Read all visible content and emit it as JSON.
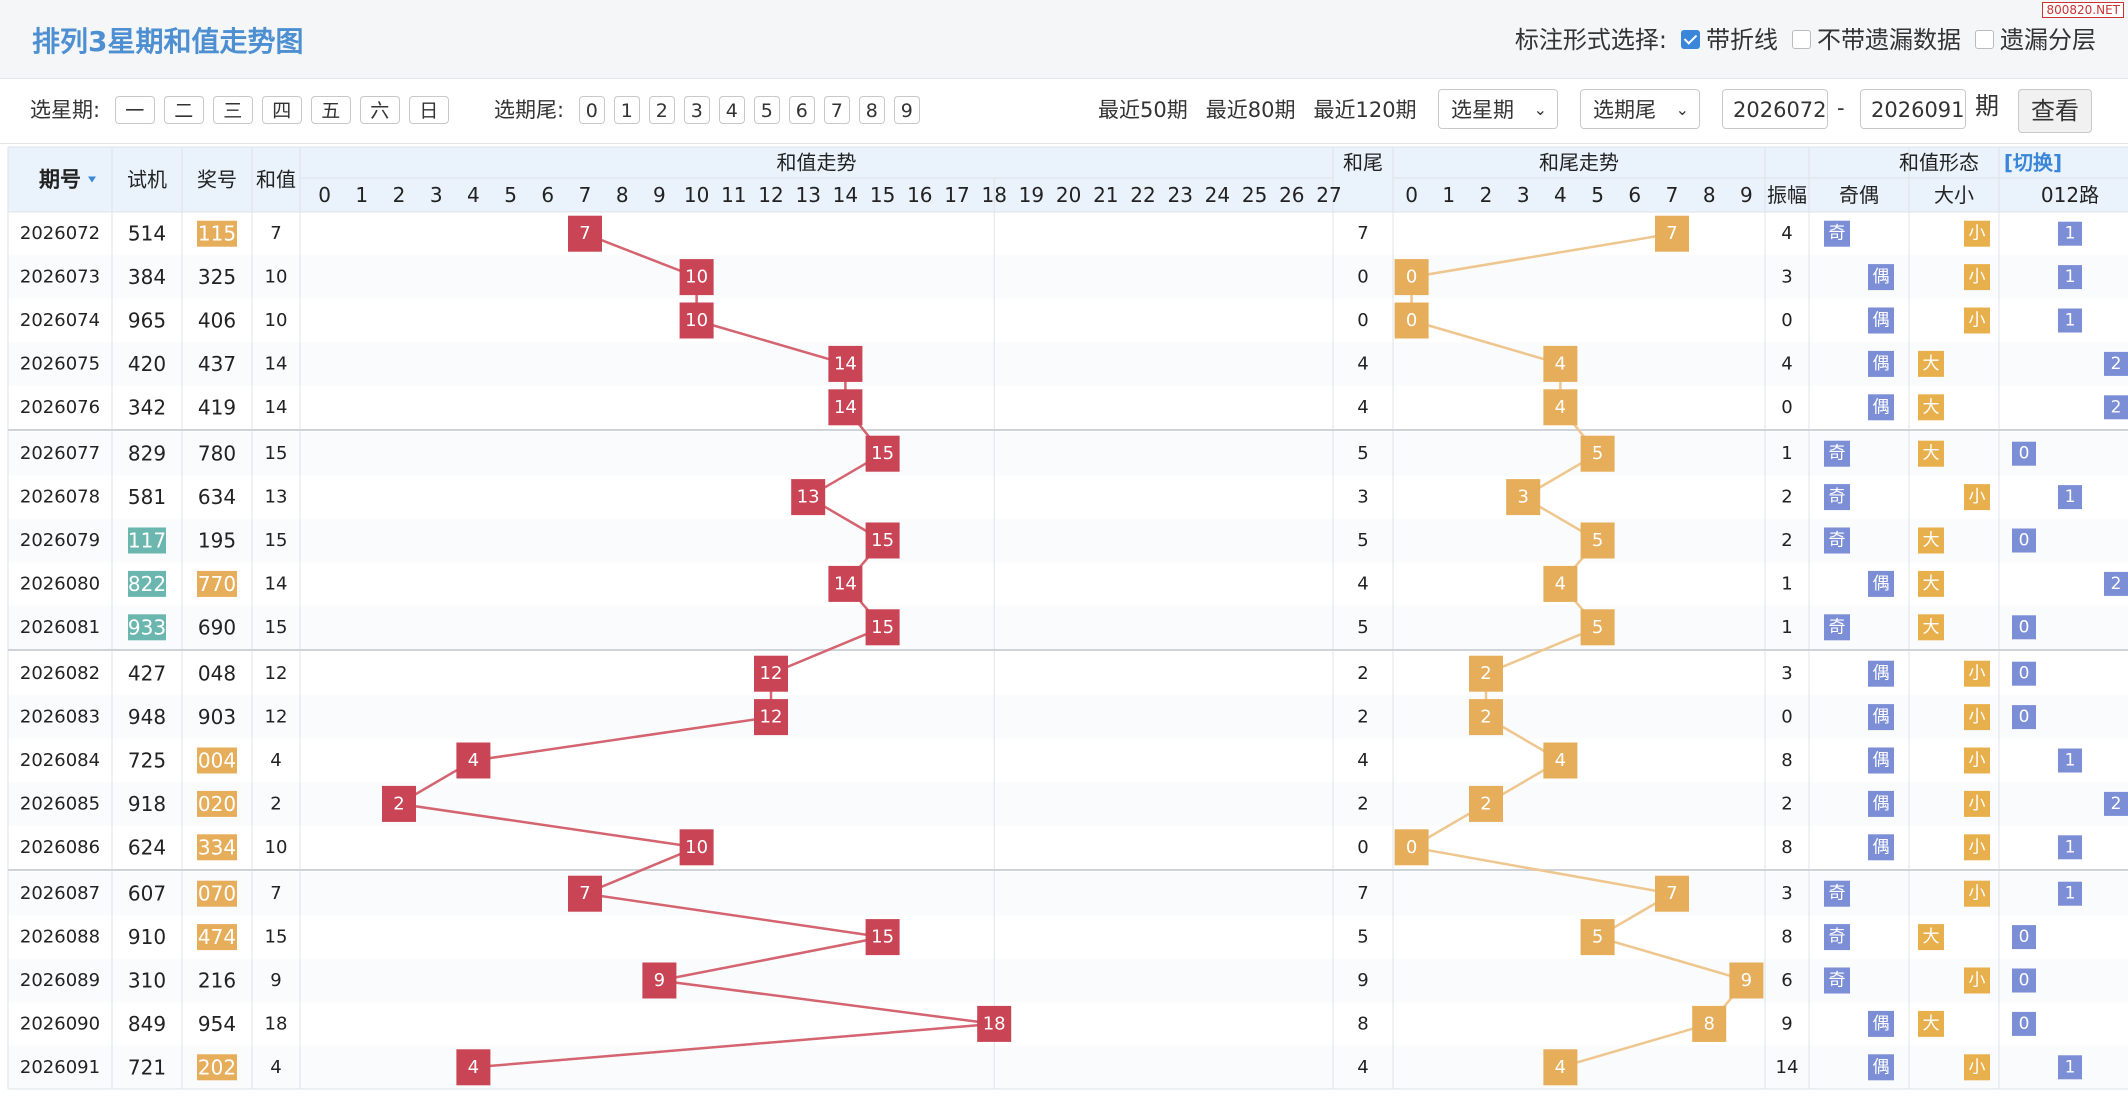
{
  "header": {
    "title": "排列3星期和值走势图",
    "mark_label": "标注形式选择:",
    "opt_line": "带折线",
    "opt_nomiss": "不带遗漏数据",
    "opt_layer": "遗漏分层",
    "watermark": "800820.NET"
  },
  "filter": {
    "week_label": "选星期:",
    "weekdays": [
      "一",
      "二",
      "三",
      "四",
      "五",
      "六",
      "日"
    ],
    "tail_label": "选期尾:",
    "tails": [
      "0",
      "1",
      "2",
      "3",
      "4",
      "5",
      "6",
      "7",
      "8",
      "9"
    ],
    "recent": [
      "最近50期",
      "最近80期",
      "最近120期"
    ],
    "select_week": "选星期",
    "select_tail": "选期尾",
    "from": "2026072",
    "dash": "-",
    "to": "2026091",
    "qi": "期",
    "query": "查看"
  },
  "table": {
    "headers": {
      "issue": "期号",
      "trial": "试机",
      "prize": "奖号",
      "sum": "和值",
      "sum_trend": "和值走势",
      "tail": "和尾",
      "tail_trend": "和尾走势",
      "shape": "和值形态",
      "switch": "[切换]",
      "amp": "振幅",
      "oddeven": "奇偶",
      "bigsmall": "大小",
      "route": "012路"
    },
    "sum_cols": [
      "0",
      "1",
      "2",
      "3",
      "4",
      "5",
      "6",
      "7",
      "8",
      "9",
      "10",
      "11",
      "12",
      "13",
      "14",
      "15",
      "16",
      "17",
      "18",
      "19",
      "20",
      "21",
      "22",
      "23",
      "24",
      "25",
      "26",
      "27"
    ],
    "tail_cols": [
      "0",
      "1",
      "2",
      "3",
      "4",
      "5",
      "6",
      "7",
      "8",
      "9"
    ],
    "labels": {
      "odd": "奇",
      "even": "偶",
      "big": "大",
      "small": "小"
    },
    "rows": [
      {
        "issue": "2026072",
        "trial": "514",
        "prize": "115",
        "sum": 7,
        "tail": 7,
        "amp": 4,
        "oe": "odd",
        "bs": "small",
        "route": 1,
        "pm": "o",
        "tm": ""
      },
      {
        "issue": "2026073",
        "trial": "384",
        "prize": "325",
        "sum": 10,
        "tail": 0,
        "amp": 3,
        "oe": "even",
        "bs": "small",
        "route": 1,
        "pm": "",
        "tm": ""
      },
      {
        "issue": "2026074",
        "trial": "965",
        "prize": "406",
        "sum": 10,
        "tail": 0,
        "amp": 0,
        "oe": "even",
        "bs": "small",
        "route": 1,
        "pm": "",
        "tm": ""
      },
      {
        "issue": "2026075",
        "trial": "420",
        "prize": "437",
        "sum": 14,
        "tail": 4,
        "amp": 4,
        "oe": "even",
        "bs": "big",
        "route": 2,
        "pm": "",
        "tm": ""
      },
      {
        "issue": "2026076",
        "trial": "342",
        "prize": "419",
        "sum": 14,
        "tail": 4,
        "amp": 0,
        "oe": "even",
        "bs": "big",
        "route": 2,
        "pm": "",
        "tm": ""
      },
      {
        "issue": "2026077",
        "trial": "829",
        "prize": "780",
        "sum": 15,
        "tail": 5,
        "amp": 1,
        "oe": "odd",
        "bs": "big",
        "route": 0,
        "pm": "",
        "tm": ""
      },
      {
        "issue": "2026078",
        "trial": "581",
        "prize": "634",
        "sum": 13,
        "tail": 3,
        "amp": 2,
        "oe": "odd",
        "bs": "small",
        "route": 1,
        "pm": "",
        "tm": ""
      },
      {
        "issue": "2026079",
        "trial": "117",
        "prize": "195",
        "sum": 15,
        "tail": 5,
        "amp": 2,
        "oe": "odd",
        "bs": "big",
        "route": 0,
        "pm": "",
        "tm": "t"
      },
      {
        "issue": "2026080",
        "trial": "822",
        "prize": "770",
        "sum": 14,
        "tail": 4,
        "amp": 1,
        "oe": "even",
        "bs": "big",
        "route": 2,
        "pm": "o",
        "tm": "t"
      },
      {
        "issue": "2026081",
        "trial": "933",
        "prize": "690",
        "sum": 15,
        "tail": 5,
        "amp": 1,
        "oe": "odd",
        "bs": "big",
        "route": 0,
        "pm": "",
        "tm": "t"
      },
      {
        "issue": "2026082",
        "trial": "427",
        "prize": "048",
        "sum": 12,
        "tail": 2,
        "amp": 3,
        "oe": "even",
        "bs": "small",
        "route": 0,
        "pm": "",
        "tm": ""
      },
      {
        "issue": "2026083",
        "trial": "948",
        "prize": "903",
        "sum": 12,
        "tail": 2,
        "amp": 0,
        "oe": "even",
        "bs": "small",
        "route": 0,
        "pm": "",
        "tm": ""
      },
      {
        "issue": "2026084",
        "trial": "725",
        "prize": "004",
        "sum": 4,
        "tail": 4,
        "amp": 8,
        "oe": "even",
        "bs": "small",
        "route": 1,
        "pm": "o",
        "tm": ""
      },
      {
        "issue": "2026085",
        "trial": "918",
        "prize": "020",
        "sum": 2,
        "tail": 2,
        "amp": 2,
        "oe": "even",
        "bs": "small",
        "route": 2,
        "pm": "o",
        "tm": ""
      },
      {
        "issue": "2026086",
        "trial": "624",
        "prize": "334",
        "sum": 10,
        "tail": 0,
        "amp": 8,
        "oe": "even",
        "bs": "small",
        "route": 1,
        "pm": "o",
        "tm": ""
      },
      {
        "issue": "2026087",
        "trial": "607",
        "prize": "070",
        "sum": 7,
        "tail": 7,
        "amp": 3,
        "oe": "odd",
        "bs": "small",
        "route": 1,
        "pm": "o",
        "tm": ""
      },
      {
        "issue": "2026088",
        "trial": "910",
        "prize": "474",
        "sum": 15,
        "tail": 5,
        "amp": 8,
        "oe": "odd",
        "bs": "big",
        "route": 0,
        "pm": "o",
        "tm": ""
      },
      {
        "issue": "2026089",
        "trial": "310",
        "prize": "216",
        "sum": 9,
        "tail": 9,
        "amp": 6,
        "oe": "odd",
        "bs": "small",
        "route": 0,
        "pm": "",
        "tm": ""
      },
      {
        "issue": "2026090",
        "trial": "849",
        "prize": "954",
        "sum": 18,
        "tail": 8,
        "amp": 9,
        "oe": "even",
        "bs": "big",
        "route": 0,
        "pm": "",
        "tm": ""
      },
      {
        "issue": "2026091",
        "trial": "721",
        "prize": "202",
        "sum": 4,
        "tail": 4,
        "amp": 14,
        "oe": "even",
        "bs": "small",
        "route": 1,
        "pm": "o",
        "tm": ""
      }
    ]
  },
  "colors": {
    "sum_hit": "#c94454",
    "tail_hit": "#e6ad5a",
    "line_sum": "#d46470",
    "line_tail": "#eec68e",
    "odd_badge": "#7b8ed6",
    "small_badge": "#e8b04c",
    "route_badge": "#7b8ed6",
    "prize_mark": "#e6ad5a",
    "trial_mark": "#6bb7b0"
  }
}
